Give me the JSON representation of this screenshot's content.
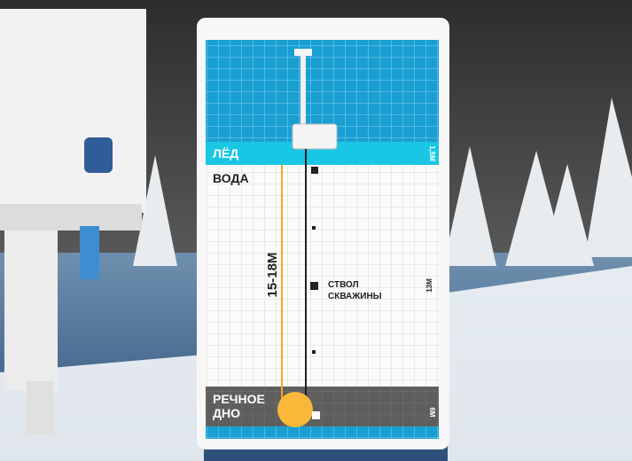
{
  "board": {
    "ice": {
      "label": "ЛЁД",
      "depth": "1,5М"
    },
    "water": {
      "label": "ВОДА",
      "depth": "13М"
    },
    "total_depth": "15-18М",
    "borehole": [
      "СТВОЛ",
      "СКВАЖИНЫ"
    ],
    "riverbed": {
      "label": [
        "РЕЧНОЕ",
        "ДНО"
      ],
      "depth": "6М"
    }
  }
}
